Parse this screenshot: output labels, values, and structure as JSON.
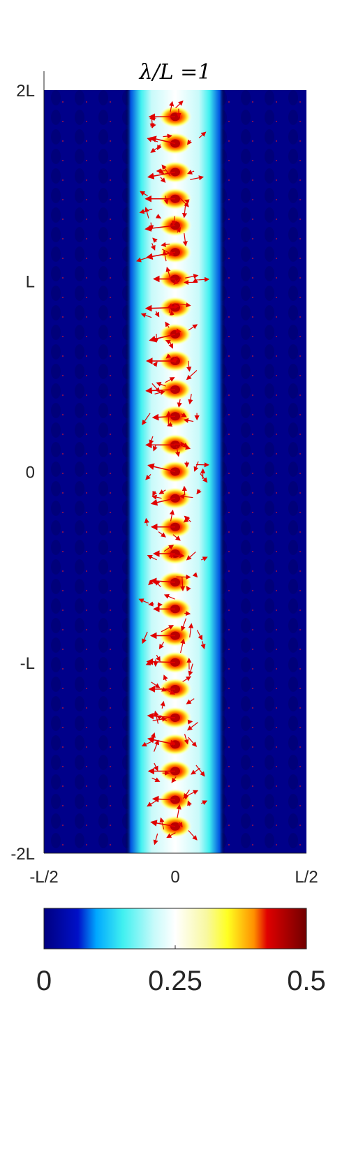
{
  "chart_data": {
    "type": "heatmap",
    "title": "λ/L =1",
    "xlabel": "",
    "ylabel": "",
    "x_ticks": [
      {
        "value": -0.5,
        "label": "-L/2"
      },
      {
        "value": 0,
        "label": "0"
      },
      {
        "value": 0.5,
        "label": "L/2"
      }
    ],
    "y_ticks": [
      {
        "value": 2,
        "label": "2L"
      },
      {
        "value": 1,
        "label": "L"
      },
      {
        "value": 0,
        "label": "0"
      },
      {
        "value": -1,
        "label": "-L"
      },
      {
        "value": -2,
        "label": "-2L"
      }
    ],
    "xlim": [
      -0.5,
      0.5
    ],
    "ylim": [
      -2,
      2
    ],
    "colormap": "jet-like (dark blue → blue → cyan → white → yellow → red → dark red)",
    "colorbar": {
      "range": [
        0,
        0.5
      ],
      "ticks": [
        {
          "value": 0,
          "label": "0"
        },
        {
          "value": 0.25,
          "label": "0.25"
        },
        {
          "value": 0.5,
          "label": "0.5"
        }
      ],
      "orientation": "horizontal",
      "stops": [
        {
          "t": 0.0,
          "color": "#000080"
        },
        {
          "t": 0.13,
          "color": "#0010c8"
        },
        {
          "t": 0.2,
          "color": "#00a8ff"
        },
        {
          "t": 0.3,
          "color": "#40f0f0"
        },
        {
          "t": 0.42,
          "color": "#c8fafa"
        },
        {
          "t": 0.5,
          "color": "#ffffff"
        },
        {
          "t": 0.62,
          "color": "#f8f8a0"
        },
        {
          "t": 0.7,
          "color": "#ffff20"
        },
        {
          "t": 0.8,
          "color": "#ff9000"
        },
        {
          "t": 0.85,
          "color": "#e00000"
        },
        {
          "t": 1.0,
          "color": "#700000"
        }
      ]
    },
    "band": {
      "center_x": 0.0,
      "half_width": 0.12,
      "edge_x": 0.17
    },
    "peaks": {
      "x": 0.0,
      "y": [
        1.86,
        1.72,
        1.57,
        1.43,
        1.29,
        1.15,
        1.01,
        0.86,
        0.72,
        0.58,
        0.43,
        0.29,
        0.14,
        0.0,
        -0.14,
        -0.29,
        -0.43,
        -0.58,
        -0.72,
        -0.86,
        -1.0,
        -1.14,
        -1.29,
        -1.43,
        -1.57,
        -1.72,
        -1.86
      ],
      "value": 0.5
    },
    "arrows": {
      "color": "#e00000",
      "type": "quiver",
      "note": "velocity vectors over the field"
    },
    "background_value": 0.02
  }
}
